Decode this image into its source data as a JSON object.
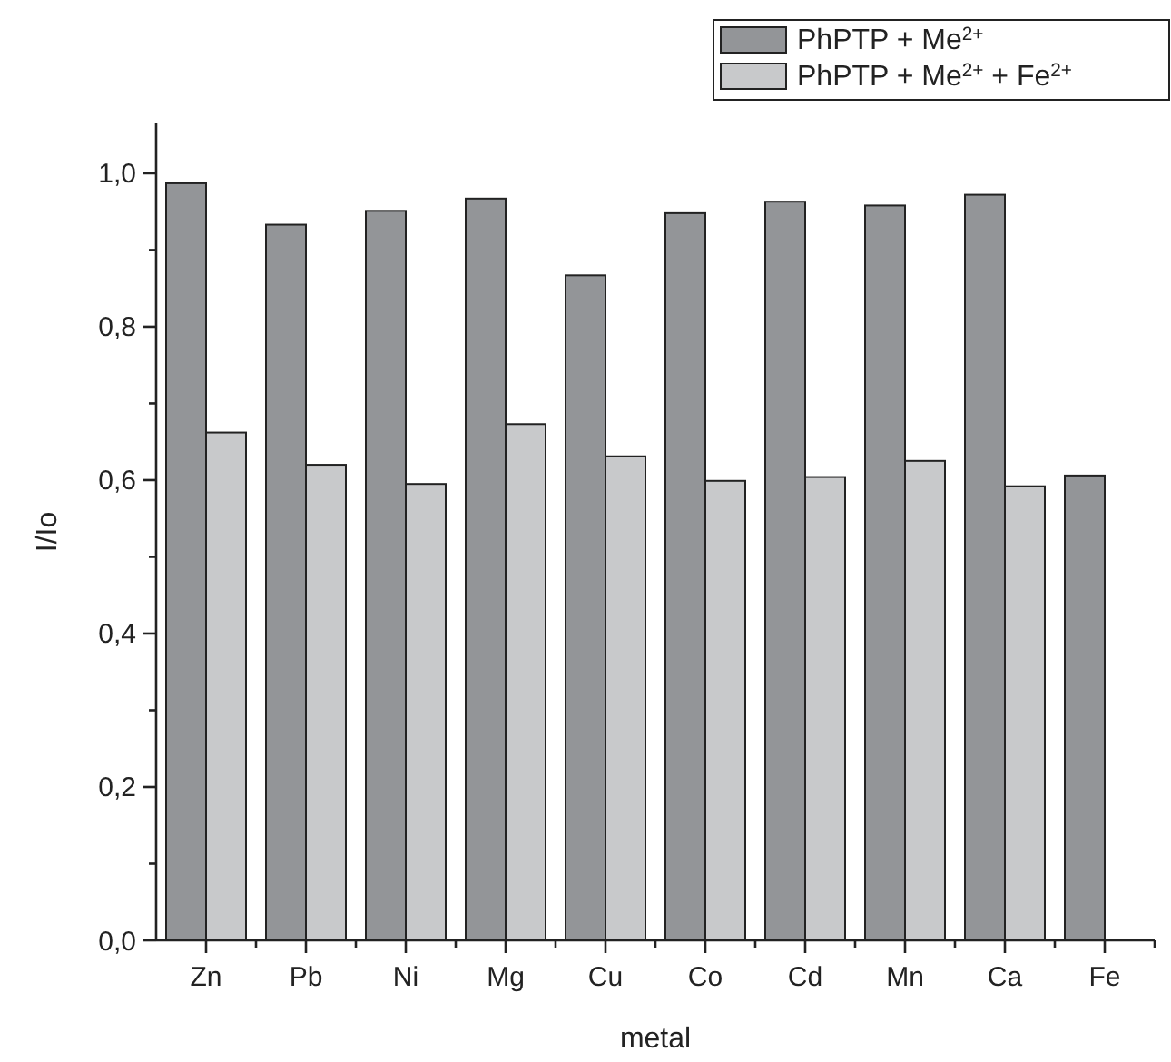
{
  "chart_data": {
    "type": "bar",
    "xlabel": "metal",
    "ylabel": "I/Io",
    "categories": [
      "Zn",
      "Pb",
      "Ni",
      "Mg",
      "Cu",
      "Co",
      "Cd",
      "Mn",
      "Ca",
      "Fe"
    ],
    "series": [
      {
        "name": "PhPTP + Me$^{2+}$",
        "color": "#939598",
        "values": [
          0.987,
          0.933,
          0.951,
          0.967,
          0.867,
          0.948,
          0.963,
          0.958,
          0.972,
          0.606
        ]
      },
      {
        "name": "PhPTP + Me$^{2+}$ + Fe$^{2+}$",
        "color": "#c8c9cb",
        "values": [
          0.662,
          0.62,
          0.595,
          0.673,
          0.631,
          0.599,
          0.604,
          0.625,
          0.592,
          null
        ]
      }
    ],
    "ylim": [
      0,
      1.065
    ],
    "yticks": [
      {
        "value": 0,
        "label": "0,0"
      },
      {
        "value": 0.1,
        "label": null
      },
      {
        "value": 0.2,
        "label": "0,2"
      },
      {
        "value": 0.3,
        "label": null
      },
      {
        "value": 0.4,
        "label": "0,4"
      },
      {
        "value": 0.5,
        "label": null
      },
      {
        "value": 0.6,
        "label": "0,6"
      },
      {
        "value": 0.7,
        "label": null
      },
      {
        "value": 0.8,
        "label": "0,8"
      },
      {
        "value": 0.9,
        "label": null
      },
      {
        "value": 1,
        "label": "1,0"
      }
    ],
    "grid": false,
    "legend": "top right"
  }
}
